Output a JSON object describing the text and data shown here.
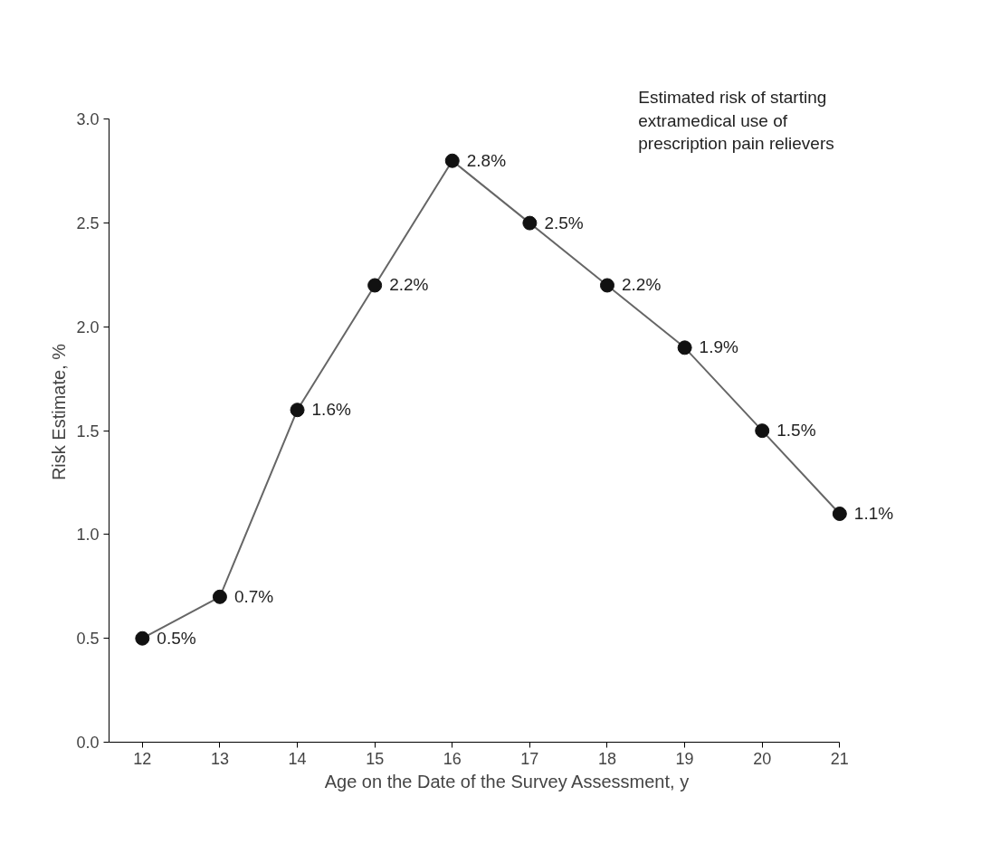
{
  "chart_data": {
    "type": "line",
    "xlabel": "Age on the Date of the Survey Assessment, y",
    "ylabel": "Risk Estimate, %",
    "annotations": [
      "Estimated risk of starting extramedical use of prescription pain relievers"
    ],
    "x": [
      12,
      13,
      14,
      15,
      16,
      17,
      18,
      19,
      20,
      21
    ],
    "series": [
      {
        "color": "#111111",
        "values": [
          0.5,
          0.7,
          1.6,
          2.2,
          2.8,
          2.5,
          2.2,
          1.9,
          1.5,
          1.1
        ],
        "value_labels": [
          "0.5%",
          "0.7%",
          "1.6%",
          "2.2%",
          "2.8%",
          "2.5%",
          "2.2%",
          "1.9%",
          "1.5%",
          "1.1%"
        ]
      }
    ],
    "xlim": [
      11.57,
      21
    ],
    "ylim": [
      0,
      3.0
    ],
    "xticks": [
      12,
      13,
      14,
      15,
      16,
      17,
      18,
      19,
      20,
      21
    ],
    "yticks": [
      {
        "value": 0,
        "label": "0.0"
      },
      {
        "value": 0.5,
        "label": "0.5"
      },
      {
        "value": 1,
        "label": "1.0"
      },
      {
        "value": 1.5,
        "label": "1.5"
      },
      {
        "value": 2,
        "label": "2.0"
      },
      {
        "value": 2.5,
        "label": "2.5"
      },
      {
        "value": 3,
        "label": "3.0"
      }
    ],
    "grid": false,
    "marker": "circle",
    "line_style": "solid"
  }
}
